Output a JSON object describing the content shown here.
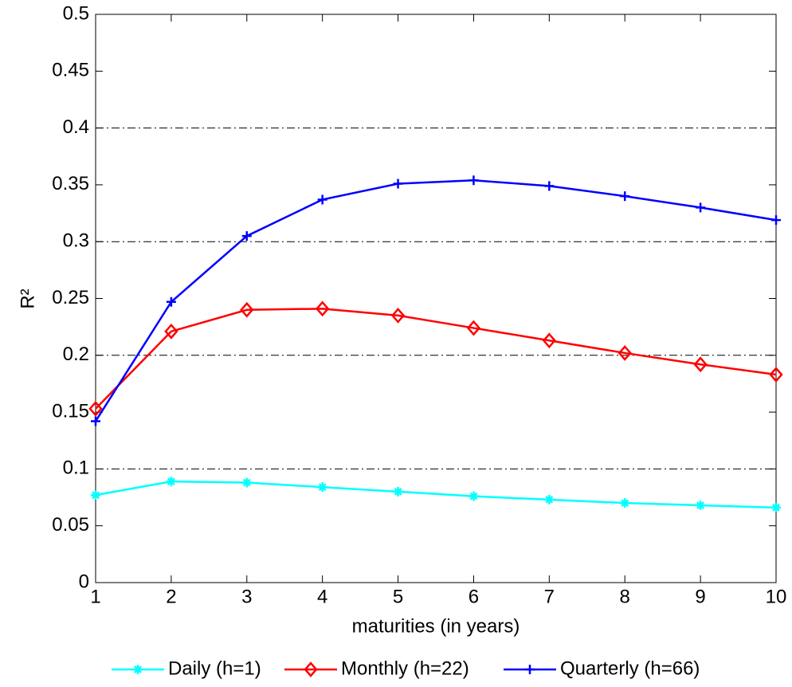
{
  "chart_data": {
    "type": "line",
    "xlabel": "maturities (in years)",
    "ylabel": "R²",
    "x": [
      1,
      2,
      3,
      4,
      5,
      6,
      7,
      8,
      9,
      10
    ],
    "series": [
      {
        "name": "Daily (h=1)",
        "color": "#00ffff",
        "marker": "asterisk",
        "values": [
          0.077,
          0.089,
          0.088,
          0.084,
          0.08,
          0.076,
          0.073,
          0.07,
          0.068,
          0.066
        ]
      },
      {
        "name": "Monthly (h=22)",
        "color": "#ff0000",
        "marker": "diamond",
        "values": [
          0.153,
          0.221,
          0.24,
          0.241,
          0.235,
          0.224,
          0.213,
          0.202,
          0.192,
          0.183
        ]
      },
      {
        "name": "Quarterly (h=66)",
        "color": "#0000ff",
        "marker": "plus",
        "values": [
          0.142,
          0.247,
          0.305,
          0.337,
          0.351,
          0.354,
          0.349,
          0.34,
          0.33,
          0.319
        ]
      }
    ],
    "xlim": [
      1,
      10
    ],
    "ylim": [
      0,
      0.5
    ],
    "xticks": [
      1,
      2,
      3,
      4,
      5,
      6,
      7,
      8,
      9,
      10
    ],
    "yticks": [
      0,
      0.05,
      0.1,
      0.15,
      0.2,
      0.25,
      0.3,
      0.35,
      0.4,
      0.45,
      0.5
    ],
    "reference_lines": [
      0.1,
      0.2,
      0.3,
      0.4
    ],
    "legend": "bottom"
  }
}
